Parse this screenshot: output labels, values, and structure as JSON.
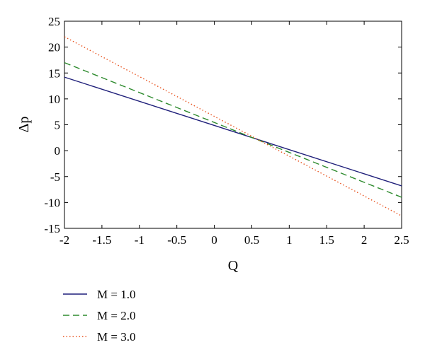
{
  "chart_data": {
    "type": "line",
    "title": "",
    "xlabel": "Q",
    "ylabel": "Δp",
    "xlim": [
      -2,
      2.5
    ],
    "ylim": [
      -15,
      25
    ],
    "xticks": [
      -2,
      -1.5,
      -1,
      -0.5,
      0,
      0.5,
      1,
      1.5,
      2,
      2.5
    ],
    "yticks": [
      -15,
      -10,
      -5,
      0,
      5,
      10,
      15,
      20,
      25
    ],
    "xtick_labels": [
      "-2",
      "-1.5",
      "-1",
      "-0.5",
      "0",
      "0.5",
      "1",
      "1.5",
      "2",
      "2.5"
    ],
    "ytick_labels": [
      "-15",
      "-10",
      "-5",
      "0",
      "5",
      "10",
      "15",
      "20",
      "25"
    ],
    "grid": false,
    "legend_position": "below-left",
    "series": [
      {
        "name": "M = 1.0",
        "x": [
          -2,
          2.5
        ],
        "y": [
          14.2,
          -6.8
        ],
        "color": "#1f1f7a",
        "style": "solid"
      },
      {
        "name": "M = 2.0",
        "x": [
          -2,
          2.5
        ],
        "y": [
          17.0,
          -9.0
        ],
        "color": "#2e8b2e",
        "style": "dashed"
      },
      {
        "name": "M = 3.0",
        "x": [
          -2,
          2.5
        ],
        "y": [
          22.0,
          -12.6
        ],
        "color": "#e8531f",
        "style": "dotted"
      }
    ]
  }
}
